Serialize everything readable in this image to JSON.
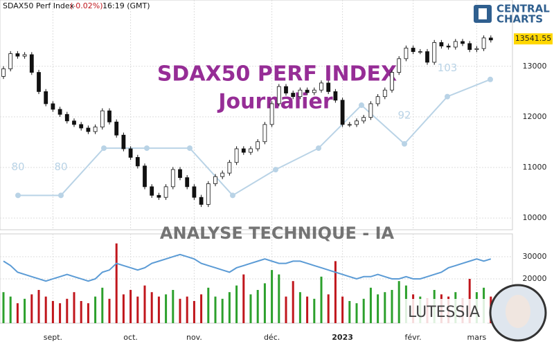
{
  "header": {
    "name": "SDAX50 Perf Index",
    "change": "(-0.02%)",
    "time": "16:19 (GMT)"
  },
  "logo": {
    "line1": "CENTRAL",
    "line2": "CHARTS"
  },
  "watermarks": {
    "title": "SDAX50 PERF INDEX",
    "period": "Journalier",
    "analysis": "ANALYSE TECHNIQUE - IA",
    "brand": "LUTESSIA"
  },
  "chart_data": [
    {
      "type": "candlestick",
      "categories": [
        null,
        null,
        null,
        null,
        null,
        null,
        null,
        "sept.",
        null,
        null,
        null,
        null,
        null,
        null,
        null,
        null,
        null,
        null,
        "oct.",
        null,
        null,
        null,
        null,
        null,
        null,
        null,
        null,
        "nov.",
        null,
        null,
        null,
        null,
        null,
        null,
        null,
        null,
        null,
        null,
        "déc.",
        null,
        null,
        null,
        null,
        null,
        null,
        null,
        null,
        null,
        "2023",
        null,
        null,
        null,
        null,
        null,
        null,
        null,
        null,
        null,
        "févr.",
        null,
        null,
        null,
        null,
        null,
        null,
        null,
        null,
        "mars",
        null,
        null
      ],
      "open": [
        12800,
        12950,
        13250,
        13200,
        13230,
        12880,
        12500,
        12260,
        12150,
        12050,
        11920,
        11850,
        11780,
        11710,
        11800,
        12120,
        11900,
        11640,
        11370,
        11200,
        11030,
        10620,
        10450,
        10410,
        10620,
        10960,
        10800,
        10620,
        10410,
        10270,
        10680,
        10820,
        10890,
        11100,
        11370,
        11300,
        11370,
        11510,
        11850,
        12260,
        12600,
        12470,
        12400,
        12530,
        12480,
        12530,
        12670,
        12500,
        12330,
        11850,
        11850,
        11920,
        11990,
        12260,
        12400,
        12530,
        12880,
        13150,
        13360,
        13290,
        13290,
        13080,
        13470,
        13400,
        13380,
        13490,
        13450,
        13330,
        13350,
        13560
      ],
      "high": [
        13000,
        13300,
        13300,
        13280,
        13280,
        12930,
        12550,
        12310,
        12200,
        12100,
        11970,
        11900,
        11830,
        11850,
        12170,
        12170,
        11950,
        11690,
        11420,
        11250,
        11080,
        10670,
        10500,
        10670,
        11010,
        11010,
        10850,
        10670,
        10460,
        10730,
        10870,
        10940,
        11150,
        11420,
        11420,
        11420,
        11560,
        11900,
        12310,
        12650,
        12650,
        12520,
        12580,
        12580,
        12580,
        12720,
        12720,
        12550,
        12380,
        11900,
        11970,
        12040,
        12310,
        12450,
        12580,
        12930,
        13200,
        13410,
        13410,
        13340,
        13340,
        13520,
        13520,
        13450,
        13540,
        13540,
        13500,
        13400,
        13610,
        13610
      ],
      "low": [
        12750,
        12900,
        13150,
        13150,
        12830,
        12450,
        12210,
        12100,
        12000,
        11870,
        11800,
        11730,
        11660,
        11660,
        11750,
        11850,
        11590,
        11320,
        11150,
        10980,
        10570,
        10400,
        10360,
        10360,
        10570,
        10750,
        10570,
        10360,
        10220,
        10220,
        10630,
        10770,
        10840,
        11050,
        11250,
        11250,
        11320,
        11460,
        11800,
        12210,
        12420,
        12350,
        12350,
        12430,
        12430,
        12480,
        12450,
        12280,
        11800,
        11800,
        11800,
        11870,
        11940,
        12210,
        12350,
        12480,
        12830,
        13100,
        13240,
        13240,
        13030,
        13030,
        13350,
        13330,
        13330,
        13400,
        13280,
        13280,
        13300,
        13470
      ],
      "close": [
        12950,
        13250,
        13200,
        13230,
        12880,
        12500,
        12260,
        12150,
        12050,
        11920,
        11850,
        11780,
        11710,
        11800,
        12120,
        11900,
        11640,
        11370,
        11200,
        11030,
        10620,
        10450,
        10410,
        10620,
        10960,
        10800,
        10620,
        10410,
        10270,
        10680,
        10820,
        10890,
        11100,
        11370,
        11300,
        11370,
        11510,
        11850,
        12260,
        12600,
        12470,
        12400,
        12530,
        12480,
        12530,
        12670,
        12500,
        12330,
        11850,
        11850,
        11920,
        11990,
        12260,
        12400,
        12530,
        12880,
        13150,
        13360,
        13290,
        13290,
        13080,
        13470,
        13400,
        13380,
        13490,
        13450,
        13330,
        13350,
        13560,
        13520
      ],
      "last_value": 13541.55,
      "ylim": [
        9770,
        14310
      ],
      "yticks": [
        10000,
        11000,
        12000,
        13000
      ],
      "up_color": "#ffffff",
      "down_color": "#111111",
      "grid": true
    },
    {
      "type": "bar",
      "values": [
        14000,
        12000,
        9000,
        11000,
        13000,
        15000,
        12000,
        10000,
        9000,
        11000,
        14000,
        10000,
        9000,
        12000,
        16000,
        11000,
        36000,
        13000,
        15000,
        12000,
        17000,
        14000,
        12000,
        13000,
        15000,
        11000,
        12000,
        10000,
        13000,
        16000,
        12000,
        11000,
        14000,
        17000,
        22000,
        13000,
        15000,
        18000,
        24000,
        22000,
        12000,
        19000,
        14000,
        12000,
        11000,
        21000,
        13000,
        28000,
        12000,
        10000,
        9000,
        11000,
        16000,
        13000,
        14000,
        15000,
        19000,
        17000,
        13000,
        12000,
        11000,
        15000,
        13000,
        12000,
        14000,
        11000,
        20000,
        14000,
        16000,
        12000
      ],
      "line": [
        28000,
        26000,
        23000,
        22000,
        21000,
        20000,
        19000,
        20000,
        21000,
        22000,
        21000,
        20000,
        19000,
        20000,
        23000,
        24000,
        27000,
        26000,
        25000,
        24000,
        25000,
        27000,
        28000,
        29000,
        30000,
        31000,
        30000,
        29000,
        27000,
        26000,
        25000,
        24000,
        23000,
        25000,
        26000,
        27000,
        28000,
        29000,
        28000,
        27000,
        27000,
        28000,
        28000,
        27000,
        26000,
        25000,
        24000,
        23000,
        22000,
        21000,
        20000,
        21000,
        21000,
        22000,
        21000,
        20000,
        20000,
        21000,
        20000,
        20000,
        21000,
        22000,
        23000,
        25000,
        26000,
        27000,
        28000,
        29000,
        28000,
        29000
      ],
      "up_color": "#2ca02c",
      "down_color": "#c0161c",
      "line_color": "#5b9bd5",
      "ylim": [
        0,
        40300
      ],
      "yticks": [
        20000,
        30000
      ]
    },
    {
      "type": "line",
      "values": [
        80,
        80,
        91,
        91,
        91,
        80,
        86,
        91,
        101,
        92,
        103,
        107
      ],
      "value_labels": [
        "80",
        "80",
        null,
        null,
        null,
        null,
        null,
        null,
        null,
        "92",
        "103",
        null
      ],
      "color": "#b9d3e6",
      "ylim": [
        72,
        125.5
      ]
    }
  ]
}
